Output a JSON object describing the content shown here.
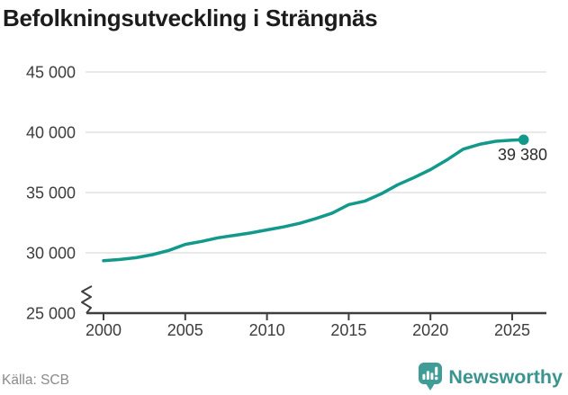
{
  "title": "Befolkningsutveckling i Strängnäs",
  "annotation": {
    "last_value_label": "39 380"
  },
  "footer": {
    "source": "Källa: SCB"
  },
  "branding": {
    "name": "Newsworthy",
    "icon": "speech-bubble-bar-chart-exclamation"
  },
  "colors": {
    "background": "#FFFFFF",
    "line": "#12998C",
    "point": "#12998C",
    "title": "#1C1C1C",
    "axis_text": "#3D3D3D",
    "axis_line": "#3F3F3F",
    "grid": "#E2E2E2",
    "annotation_text": "#2B2B2B",
    "source_text": "#8A8A8A",
    "brand_text": "#3A948F",
    "brand_icon": "#3F9C96"
  },
  "chart_data": {
    "type": "line",
    "title": "Befolkningsutveckling i Strängnäs",
    "xlabel": "",
    "ylabel": "",
    "grid": "horizontal",
    "legend": "none",
    "axis_break_above_x_axis": true,
    "ylim": [
      25000,
      45000
    ],
    "xlim": [
      1998.9,
      2027.1
    ],
    "series": [
      {
        "name": "Befolkning",
        "x": [
          2000,
          2001,
          2002,
          2003,
          2004,
          2005,
          2006,
          2007,
          2008,
          2009,
          2010,
          2011,
          2012,
          2013,
          2014,
          2015,
          2016,
          2017,
          2018,
          2019,
          2020,
          2021,
          2022,
          2023,
          2024,
          2025,
          2025.7
        ],
        "y": [
          29350,
          29450,
          29600,
          29850,
          30200,
          30700,
          30950,
          31250,
          31450,
          31650,
          31900,
          32150,
          32450,
          32850,
          33300,
          34000,
          34300,
          34900,
          35650,
          36250,
          36900,
          37700,
          38600,
          39000,
          39250,
          39350,
          39380
        ]
      }
    ],
    "y_ticks": [
      {
        "value": 25000,
        "label": "25 000"
      },
      {
        "value": 30000,
        "label": "30 000"
      },
      {
        "value": 35000,
        "label": "35 000"
      },
      {
        "value": 40000,
        "label": "40 000"
      },
      {
        "value": 45000,
        "label": "45 000"
      }
    ],
    "x_ticks": [
      {
        "value": 2000,
        "label": "2000"
      },
      {
        "value": 2005,
        "label": "2005"
      },
      {
        "value": 2010,
        "label": "2010"
      },
      {
        "value": 2015,
        "label": "2015"
      },
      {
        "value": 2020,
        "label": "2020"
      },
      {
        "value": 2025,
        "label": "2025"
      }
    ],
    "end_point_label": "39 380"
  }
}
